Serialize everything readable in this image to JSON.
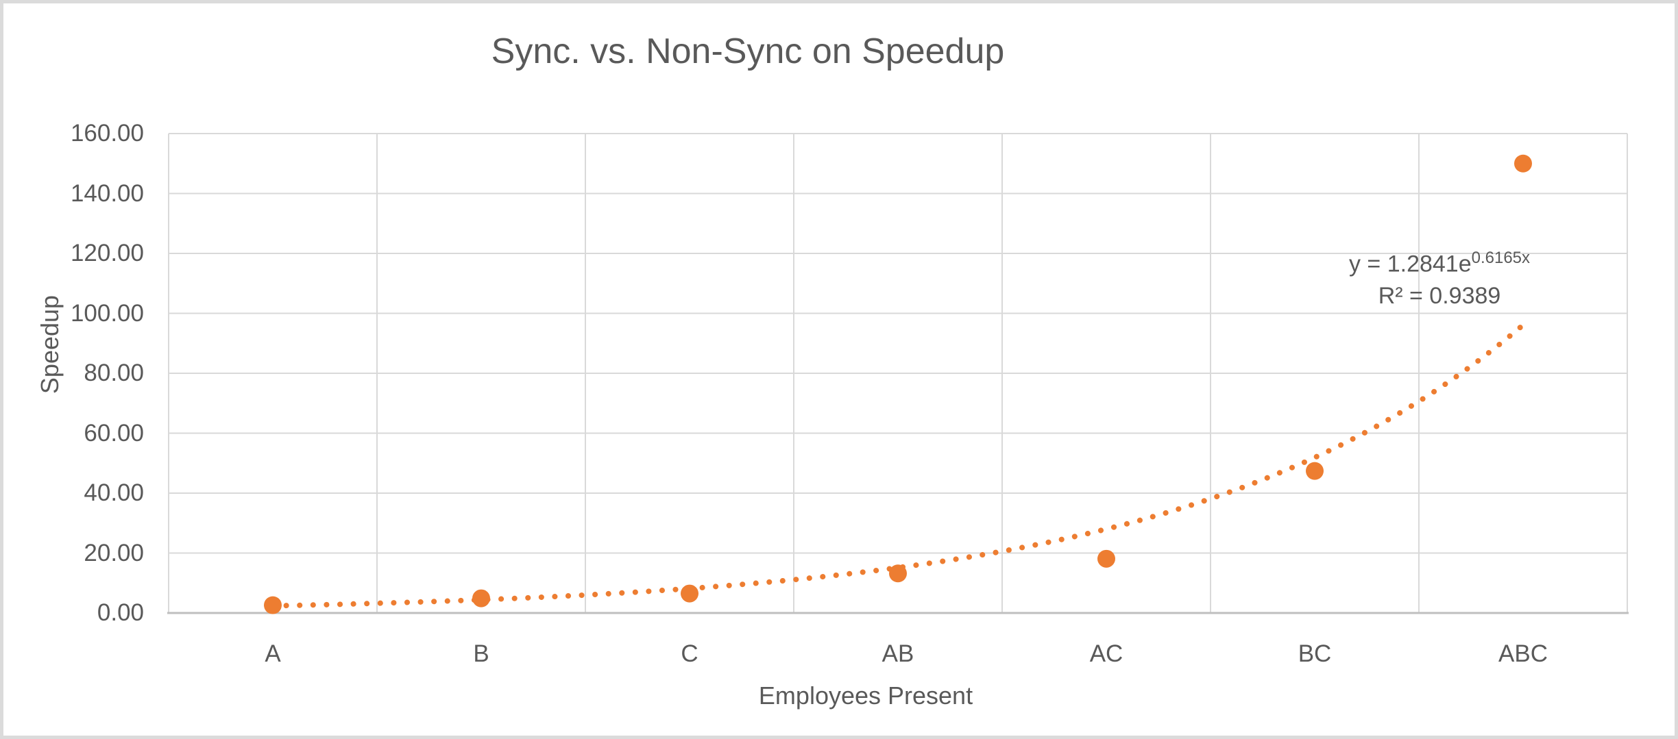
{
  "chart": {
    "title": "Sync. vs. Non-Sync on Speedup",
    "x_axis_title": "Employees Present",
    "y_axis_title": "Speedup",
    "equation_base": "y = 1.2841e",
    "equation_exponent": "0.6165x",
    "r_squared_label": "R² = 0.9389"
  },
  "chart_data": {
    "type": "scatter",
    "title": "Sync. vs. Non-Sync on Speedup",
    "xlabel": "Employees Present",
    "ylabel": "Speedup",
    "categories": [
      "A",
      "B",
      "C",
      "AB",
      "AC",
      "BC",
      "ABC"
    ],
    "values": [
      2.6,
      4.9,
      6.5,
      13.2,
      18.1,
      47.4,
      150.0
    ],
    "ylim": [
      0,
      160
    ],
    "ytick_step": 20,
    "ytick_labels": [
      "0.00",
      "20.00",
      "40.00",
      "60.00",
      "80.00",
      "100.00",
      "120.00",
      "140.00",
      "160.00"
    ],
    "grid": true,
    "legend": "none",
    "marker_style": "filled-circle",
    "trendline": {
      "type": "exponential",
      "a": 1.2841,
      "b": 0.6165,
      "r_squared": 0.9389,
      "style": "dotted",
      "x_range": [
        1,
        7
      ],
      "equation_text": "y = 1.2841e^0.6165x",
      "r_squared_text": "R² = 0.9389"
    }
  },
  "colors": {
    "marker": "#ED7D31",
    "trendline": "#ED7D31",
    "gridline": "#D9D9D9",
    "axis_line": "#BFBFBF",
    "text": "#595959",
    "border": "#DBDBDB",
    "background": "#FFFFFF"
  }
}
